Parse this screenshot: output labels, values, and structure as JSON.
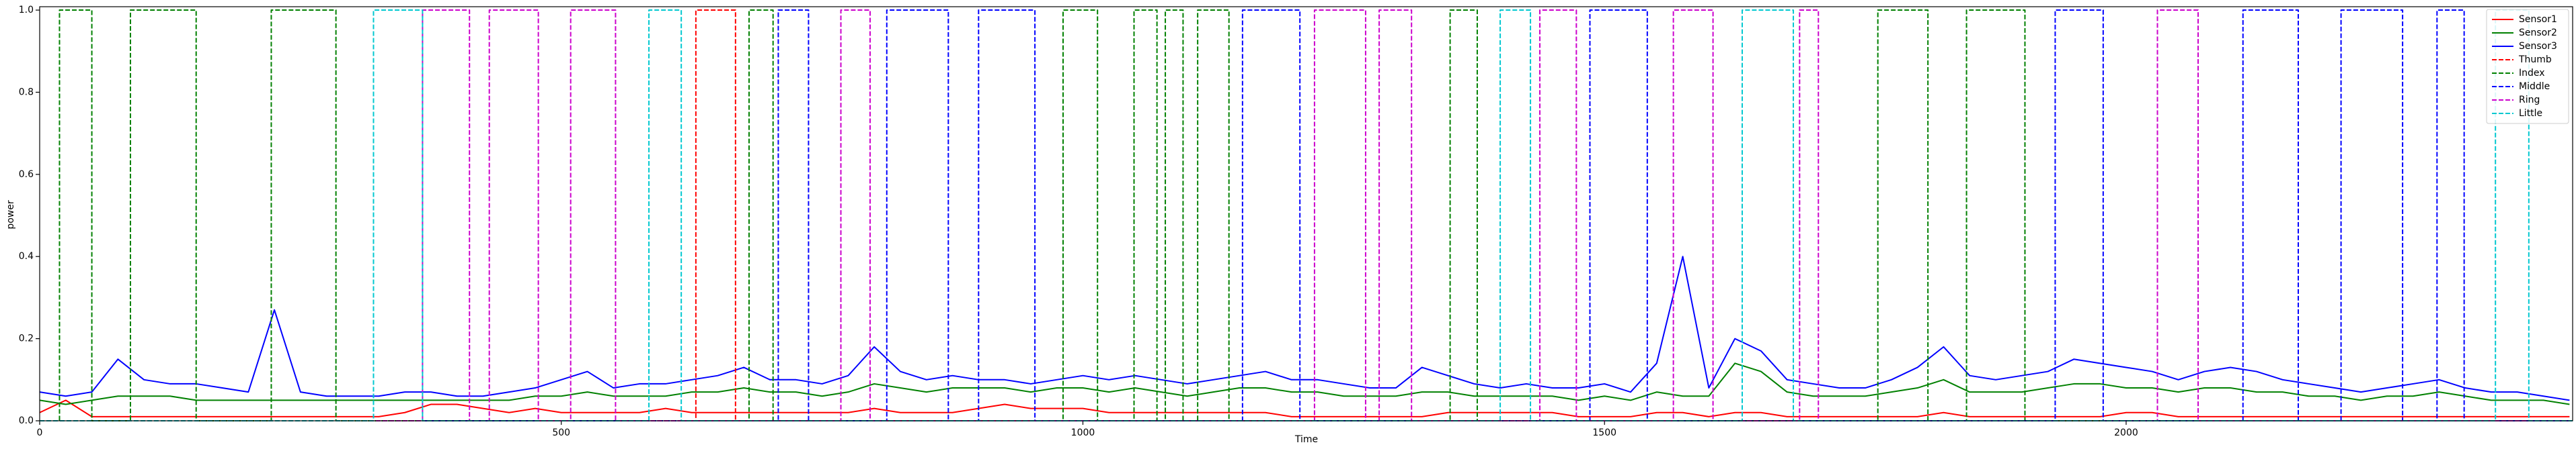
{
  "chart_data": {
    "type": "line",
    "xlabel": "Time",
    "ylabel": "power",
    "xlim": [
      0,
      2428
    ],
    "ylim": [
      0,
      1.005
    ],
    "xticks": [
      0,
      500,
      1000,
      1500,
      2000
    ],
    "yticks": [
      {
        "value": 0,
        "label": "0.0"
      },
      {
        "value": 0.2,
        "label": "0.2"
      },
      {
        "value": 0.4,
        "label": "0.4"
      },
      {
        "value": 0.6,
        "label": "0.6"
      },
      {
        "value": 0.8,
        "label": "0.8"
      },
      {
        "value": 1,
        "label": "1.0"
      }
    ],
    "legend": "upper right",
    "x": [
      0,
      25,
      50,
      75,
      100,
      125,
      150,
      175,
      200,
      225,
      250,
      275,
      300,
      325,
      350,
      375,
      400,
      425,
      450,
      475,
      500,
      525,
      550,
      575,
      600,
      625,
      650,
      675,
      700,
      725,
      750,
      775,
      800,
      825,
      850,
      875,
      900,
      925,
      950,
      975,
      1000,
      1025,
      1050,
      1075,
      1100,
      1125,
      1150,
      1175,
      1200,
      1225,
      1250,
      1275,
      1300,
      1325,
      1350,
      1375,
      1400,
      1425,
      1450,
      1475,
      1500,
      1525,
      1550,
      1575,
      1600,
      1625,
      1650,
      1675,
      1700,
      1725,
      1750,
      1775,
      1800,
      1825,
      1850,
      1875,
      1900,
      1925,
      1950,
      1975,
      2000,
      2025,
      2050,
      2075,
      2100,
      2125,
      2150,
      2175,
      2200,
      2225,
      2250,
      2275,
      2300,
      2325,
      2350,
      2375,
      2400,
      2425
    ],
    "series": [
      {
        "name": "Sensor1",
        "color": "#ff0000",
        "linestyle": "solid",
        "values": [
          0.02,
          0.05,
          0.01,
          0.01,
          0.01,
          0.01,
          0.01,
          0.01,
          0.01,
          0.01,
          0.01,
          0.01,
          0.01,
          0.01,
          0.02,
          0.04,
          0.04,
          0.03,
          0.02,
          0.03,
          0.02,
          0.02,
          0.02,
          0.02,
          0.03,
          0.02,
          0.02,
          0.02,
          0.02,
          0.02,
          0.02,
          0.02,
          0.03,
          0.02,
          0.02,
          0.02,
          0.03,
          0.04,
          0.03,
          0.03,
          0.03,
          0.02,
          0.02,
          0.02,
          0.02,
          0.02,
          0.02,
          0.02,
          0.01,
          0.01,
          0.01,
          0.01,
          0.01,
          0.01,
          0.02,
          0.02,
          0.02,
          0.02,
          0.02,
          0.01,
          0.01,
          0.01,
          0.02,
          0.02,
          0.01,
          0.02,
          0.02,
          0.01,
          0.01,
          0.01,
          0.01,
          0.01,
          0.01,
          0.02,
          0.01,
          0.01,
          0.01,
          0.01,
          0.01,
          0.01,
          0.02,
          0.02,
          0.01,
          0.01,
          0.01,
          0.01,
          0.01,
          0.01,
          0.01,
          0.01,
          0.01,
          0.01,
          0.01,
          0.01,
          0.01,
          0.01,
          0.01,
          0.01
        ]
      },
      {
        "name": "Sensor2",
        "color": "#008000",
        "linestyle": "solid",
        "values": [
          0.05,
          0.04,
          0.05,
          0.06,
          0.06,
          0.06,
          0.05,
          0.05,
          0.05,
          0.05,
          0.05,
          0.05,
          0.05,
          0.05,
          0.05,
          0.05,
          0.05,
          0.05,
          0.05,
          0.06,
          0.06,
          0.07,
          0.06,
          0.06,
          0.06,
          0.07,
          0.07,
          0.08,
          0.07,
          0.07,
          0.06,
          0.07,
          0.09,
          0.08,
          0.07,
          0.08,
          0.08,
          0.08,
          0.07,
          0.08,
          0.08,
          0.07,
          0.08,
          0.07,
          0.06,
          0.07,
          0.08,
          0.08,
          0.07,
          0.07,
          0.06,
          0.06,
          0.06,
          0.07,
          0.07,
          0.06,
          0.06,
          0.06,
          0.06,
          0.05,
          0.06,
          0.05,
          0.07,
          0.06,
          0.06,
          0.14,
          0.12,
          0.07,
          0.06,
          0.06,
          0.06,
          0.07,
          0.08,
          0.1,
          0.07,
          0.07,
          0.07,
          0.08,
          0.09,
          0.09,
          0.08,
          0.08,
          0.07,
          0.08,
          0.08,
          0.07,
          0.07,
          0.06,
          0.06,
          0.05,
          0.06,
          0.06,
          0.07,
          0.06,
          0.05,
          0.05,
          0.05,
          0.04
        ]
      },
      {
        "name": "Sensor3",
        "color": "#0000ff",
        "linestyle": "solid",
        "values": [
          0.07,
          0.06,
          0.07,
          0.15,
          0.1,
          0.09,
          0.09,
          0.08,
          0.07,
          0.27,
          0.07,
          0.06,
          0.06,
          0.06,
          0.07,
          0.07,
          0.06,
          0.06,
          0.07,
          0.08,
          0.1,
          0.12,
          0.08,
          0.09,
          0.09,
          0.1,
          0.11,
          0.13,
          0.1,
          0.1,
          0.09,
          0.11,
          0.18,
          0.12,
          0.1,
          0.11,
          0.1,
          0.1,
          0.09,
          0.1,
          0.11,
          0.1,
          0.11,
          0.1,
          0.09,
          0.1,
          0.11,
          0.12,
          0.1,
          0.1,
          0.09,
          0.08,
          0.08,
          0.13,
          0.11,
          0.09,
          0.08,
          0.09,
          0.08,
          0.08,
          0.09,
          0.07,
          0.14,
          0.4,
          0.08,
          0.2,
          0.17,
          0.1,
          0.09,
          0.08,
          0.08,
          0.1,
          0.13,
          0.18,
          0.11,
          0.1,
          0.11,
          0.12,
          0.15,
          0.14,
          0.13,
          0.12,
          0.1,
          0.12,
          0.13,
          0.12,
          0.1,
          0.09,
          0.08,
          0.07,
          0.08,
          0.09,
          0.1,
          0.08,
          0.07,
          0.07,
          0.06,
          0.05
        ]
      },
      {
        "name": "Thumb",
        "color": "#ff0000",
        "linestyle": "dashed",
        "x": [
          0,
          629,
          629,
          667,
          667,
          2428
        ],
        "values": [
          0,
          0,
          1,
          1,
          0,
          0
        ]
      },
      {
        "name": "Index",
        "color": "#008000",
        "linestyle": "dashed",
        "x": [
          0,
          19,
          19,
          50,
          50,
          87,
          87,
          150,
          150,
          222,
          222,
          284,
          284,
          680,
          680,
          703,
          703,
          981,
          981,
          1014,
          1014,
          1049,
          1049,
          1071,
          1071,
          1079,
          1079,
          1096,
          1096,
          1110,
          1110,
          1140,
          1140,
          1352,
          1352,
          1378,
          1378,
          1762,
          1762,
          1810,
          1810,
          1847,
          1847,
          1903,
          1903,
          2428
        ],
        "values": [
          0,
          0,
          1,
          1,
          0,
          0,
          1,
          1,
          0,
          0,
          1,
          1,
          0,
          0,
          1,
          1,
          0,
          0,
          1,
          1,
          0,
          0,
          1,
          1,
          0,
          0,
          1,
          1,
          0,
          0,
          1,
          1,
          0,
          0,
          1,
          1,
          0,
          0,
          1,
          1,
          0,
          0,
          1,
          1,
          0,
          0
        ]
      },
      {
        "name": "Middle",
        "color": "#0000ff",
        "linestyle": "dashed",
        "x": [
          0,
          708,
          708,
          737,
          737,
          812,
          812,
          871,
          871,
          900,
          900,
          954,
          954,
          1153,
          1153,
          1208,
          1208,
          1486,
          1486,
          1541,
          1541,
          1932,
          1932,
          1978,
          1978,
          2112,
          2112,
          2165,
          2165,
          2206,
          2206,
          2265,
          2265,
          2298,
          2298,
          2324,
          2324,
          2428
        ],
        "values": [
          0,
          0,
          1,
          1,
          0,
          0,
          1,
          1,
          0,
          0,
          1,
          1,
          0,
          0,
          1,
          1,
          0,
          0,
          1,
          1,
          0,
          0,
          1,
          1,
          0,
          0,
          1,
          1,
          0,
          0,
          1,
          1,
          0,
          0,
          1,
          1,
          0,
          0
        ]
      },
      {
        "name": "Ring",
        "color": "#cc00cc",
        "linestyle": "dashed",
        "x": [
          0,
          367,
          367,
          412,
          412,
          431,
          431,
          478,
          478,
          509,
          509,
          552,
          552,
          768,
          768,
          796,
          796,
          1222,
          1222,
          1271,
          1271,
          1284,
          1284,
          1315,
          1315,
          1438,
          1438,
          1473,
          1473,
          1566,
          1566,
          1604,
          1604,
          1687,
          1687,
          1705,
          1705,
          2030,
          2030,
          2069,
          2069,
          2428
        ],
        "values": [
          0,
          0,
          1,
          1,
          0,
          0,
          1,
          1,
          0,
          0,
          1,
          1,
          0,
          0,
          1,
          1,
          0,
          0,
          1,
          1,
          0,
          0,
          1,
          1,
          0,
          0,
          1,
          1,
          0,
          0,
          1,
          1,
          0,
          0,
          1,
          1,
          0,
          0,
          1,
          1,
          0,
          0
        ]
      },
      {
        "name": "Little",
        "color": "#00c8d0",
        "linestyle": "dashed",
        "x": [
          0,
          320,
          320,
          367,
          367,
          584,
          584,
          615,
          615,
          1400,
          1400,
          1429,
          1429,
          1632,
          1632,
          1681,
          1681,
          2354,
          2354,
          2386,
          2386,
          2428
        ],
        "values": [
          0,
          0,
          1,
          1,
          0,
          0,
          1,
          1,
          0,
          0,
          1,
          1,
          0,
          0,
          1,
          1,
          0,
          0,
          1,
          1,
          0,
          0
        ]
      }
    ]
  }
}
